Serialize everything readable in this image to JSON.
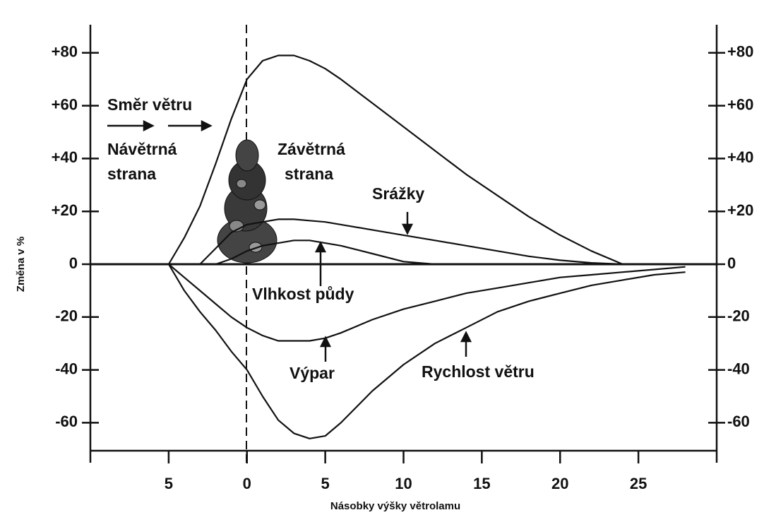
{
  "chart_data": {
    "type": "line",
    "ylabel": "Změna v %",
    "xlabel": "Násobky výšky větrolamu",
    "x": [
      -10,
      -6,
      -5,
      -4,
      -3,
      -2,
      -1,
      0,
      1,
      2,
      3,
      4,
      5,
      6,
      8,
      10,
      12,
      14,
      16,
      18,
      20,
      22,
      24,
      26,
      28,
      30
    ],
    "series": [
      {
        "color": "#111111",
        "values": [
          null,
          null,
          0,
          10,
          22,
          38,
          55,
          70,
          77,
          79,
          79,
          77,
          74,
          70,
          61,
          52,
          43,
          34,
          26,
          18,
          11,
          5,
          0,
          null,
          null,
          null
        ]
      },
      {
        "name": "Srážky",
        "color": "#111111",
        "values": [
          null,
          null,
          null,
          null,
          0,
          6,
          12,
          15,
          16,
          17,
          17,
          16.5,
          16,
          15,
          13,
          11,
          9,
          7,
          5,
          3,
          1.5,
          0.5,
          0,
          null,
          null,
          null
        ]
      },
      {
        "name": "Vlhkost půdy",
        "color": "#111111",
        "values": [
          null,
          null,
          null,
          null,
          null,
          0,
          2,
          5,
          7,
          8,
          9,
          9,
          8,
          7,
          4,
          1,
          0,
          null,
          null,
          null,
          null,
          null,
          null,
          null,
          null,
          null
        ]
      },
      {
        "name": "Výpar",
        "color": "#111111",
        "values": [
          null,
          null,
          0,
          -5,
          -10,
          -15,
          -20,
          -24,
          -27,
          -29,
          -29,
          -29,
          -28,
          -26,
          -21,
          -17,
          -14,
          -11,
          -9,
          -7,
          -5,
          -4,
          -3,
          -2,
          -1,
          null
        ]
      },
      {
        "name": "Rychlost větru",
        "color": "#111111",
        "values": [
          null,
          null,
          0,
          -10,
          -18,
          -25,
          -33,
          -40,
          -50,
          -59,
          -64,
          -66,
          -65,
          -60,
          -48,
          -38,
          -30,
          -24,
          -18,
          -14,
          -11,
          -8,
          -6,
          -4,
          -3,
          null
        ]
      }
    ],
    "annotations": [
      "Směr větru",
      "Návětrná",
      "strana",
      "Závětrná",
      "strana"
    ],
    "xlim": [
      -10,
      30
    ],
    "xticks": [
      {
        "value": -5,
        "label": "5"
      },
      0,
      5,
      10,
      15,
      20,
      25
    ],
    "ylim": [
      -70,
      90
    ],
    "yticks": [
      {
        "value": 80,
        "label": "+80"
      },
      {
        "value": 60,
        "label": "+60"
      },
      {
        "value": 40,
        "label": "+40"
      },
      {
        "value": 20,
        "label": "+20"
      },
      0,
      -20,
      -40,
      -60
    ],
    "grid": false
  }
}
